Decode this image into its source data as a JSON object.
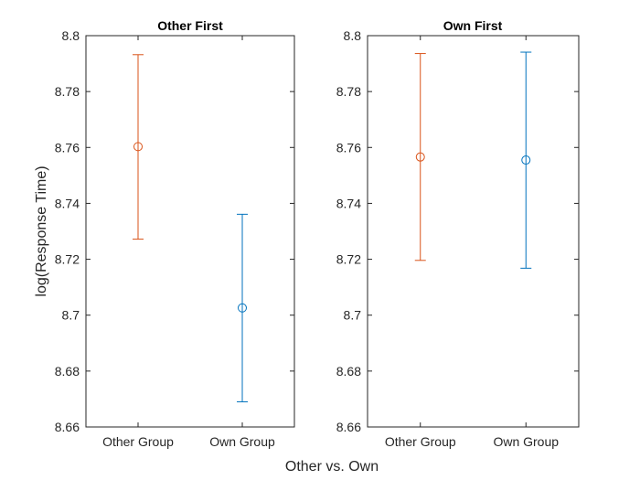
{
  "figure": {
    "xlabel": "Other vs. Own",
    "ylabel": "log(Response Time)"
  },
  "colors": {
    "other_group": "#D95319",
    "own_group": "#0072BD",
    "axis": "#262626"
  },
  "chart_data": [
    {
      "type": "errorbar",
      "title": "Other First",
      "xlabel": "",
      "ylabel": "log(Response Time)",
      "categories": [
        "Other Group",
        "Own Group"
      ],
      "ylim": [
        8.66,
        8.8
      ],
      "yticks": [
        8.66,
        8.68,
        8.7,
        8.72,
        8.74,
        8.76,
        8.78,
        8.8
      ],
      "ytick_labels": [
        "8.66",
        "8.68",
        "8.7",
        "8.72",
        "8.74",
        "8.76",
        "8.78",
        "8.8"
      ],
      "points": [
        {
          "category": "Other Group",
          "mean": 8.7603,
          "lower": 8.7272,
          "upper": 8.7932,
          "color": "#D95319"
        },
        {
          "category": "Own Group",
          "mean": 8.7026,
          "lower": 8.669,
          "upper": 8.7361,
          "color": "#0072BD"
        }
      ],
      "grid": false,
      "box": true
    },
    {
      "type": "errorbar",
      "title": "Own First",
      "xlabel": "",
      "ylabel": "",
      "categories": [
        "Other Group",
        "Own Group"
      ],
      "ylim": [
        8.66,
        8.8
      ],
      "yticks": [
        8.66,
        8.68,
        8.7,
        8.72,
        8.74,
        8.76,
        8.78,
        8.8
      ],
      "ytick_labels": [
        "8.66",
        "8.68",
        "8.7",
        "8.72",
        "8.74",
        "8.76",
        "8.78",
        "8.8"
      ],
      "points": [
        {
          "category": "Other Group",
          "mean": 8.7566,
          "lower": 8.7196,
          "upper": 8.7936,
          "color": "#D95319"
        },
        {
          "category": "Own Group",
          "mean": 8.7555,
          "lower": 8.7168,
          "upper": 8.7941,
          "color": "#0072BD"
        }
      ],
      "grid": false,
      "box": true
    }
  ]
}
